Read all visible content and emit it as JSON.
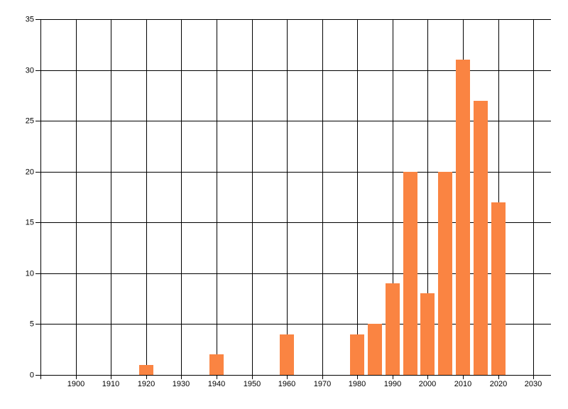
{
  "chart_data": {
    "type": "bar",
    "title": "",
    "xlabel": "",
    "ylabel": "",
    "x": [
      1920,
      1940,
      1960,
      1980,
      1985,
      1990,
      1995,
      2000,
      2005,
      2010,
      2015,
      2020
    ],
    "values": [
      1,
      2,
      4,
      4,
      5,
      9,
      20,
      8,
      20,
      31,
      27,
      17
    ],
    "xlim": [
      1890,
      2035
    ],
    "ylim": [
      0,
      35
    ],
    "x_ticks": [
      1900,
      1910,
      1920,
      1930,
      1940,
      1950,
      1960,
      1970,
      1980,
      1990,
      2000,
      2010,
      2020,
      2030
    ],
    "y_ticks": [
      0,
      5,
      10,
      15,
      20,
      25,
      30,
      35
    ],
    "grid": true,
    "legend": false,
    "colors": {
      "bar": "#fa8442",
      "grid": "#000000",
      "axis": "#000000",
      "tick_label": "#000000",
      "background": "#ffffff"
    }
  }
}
